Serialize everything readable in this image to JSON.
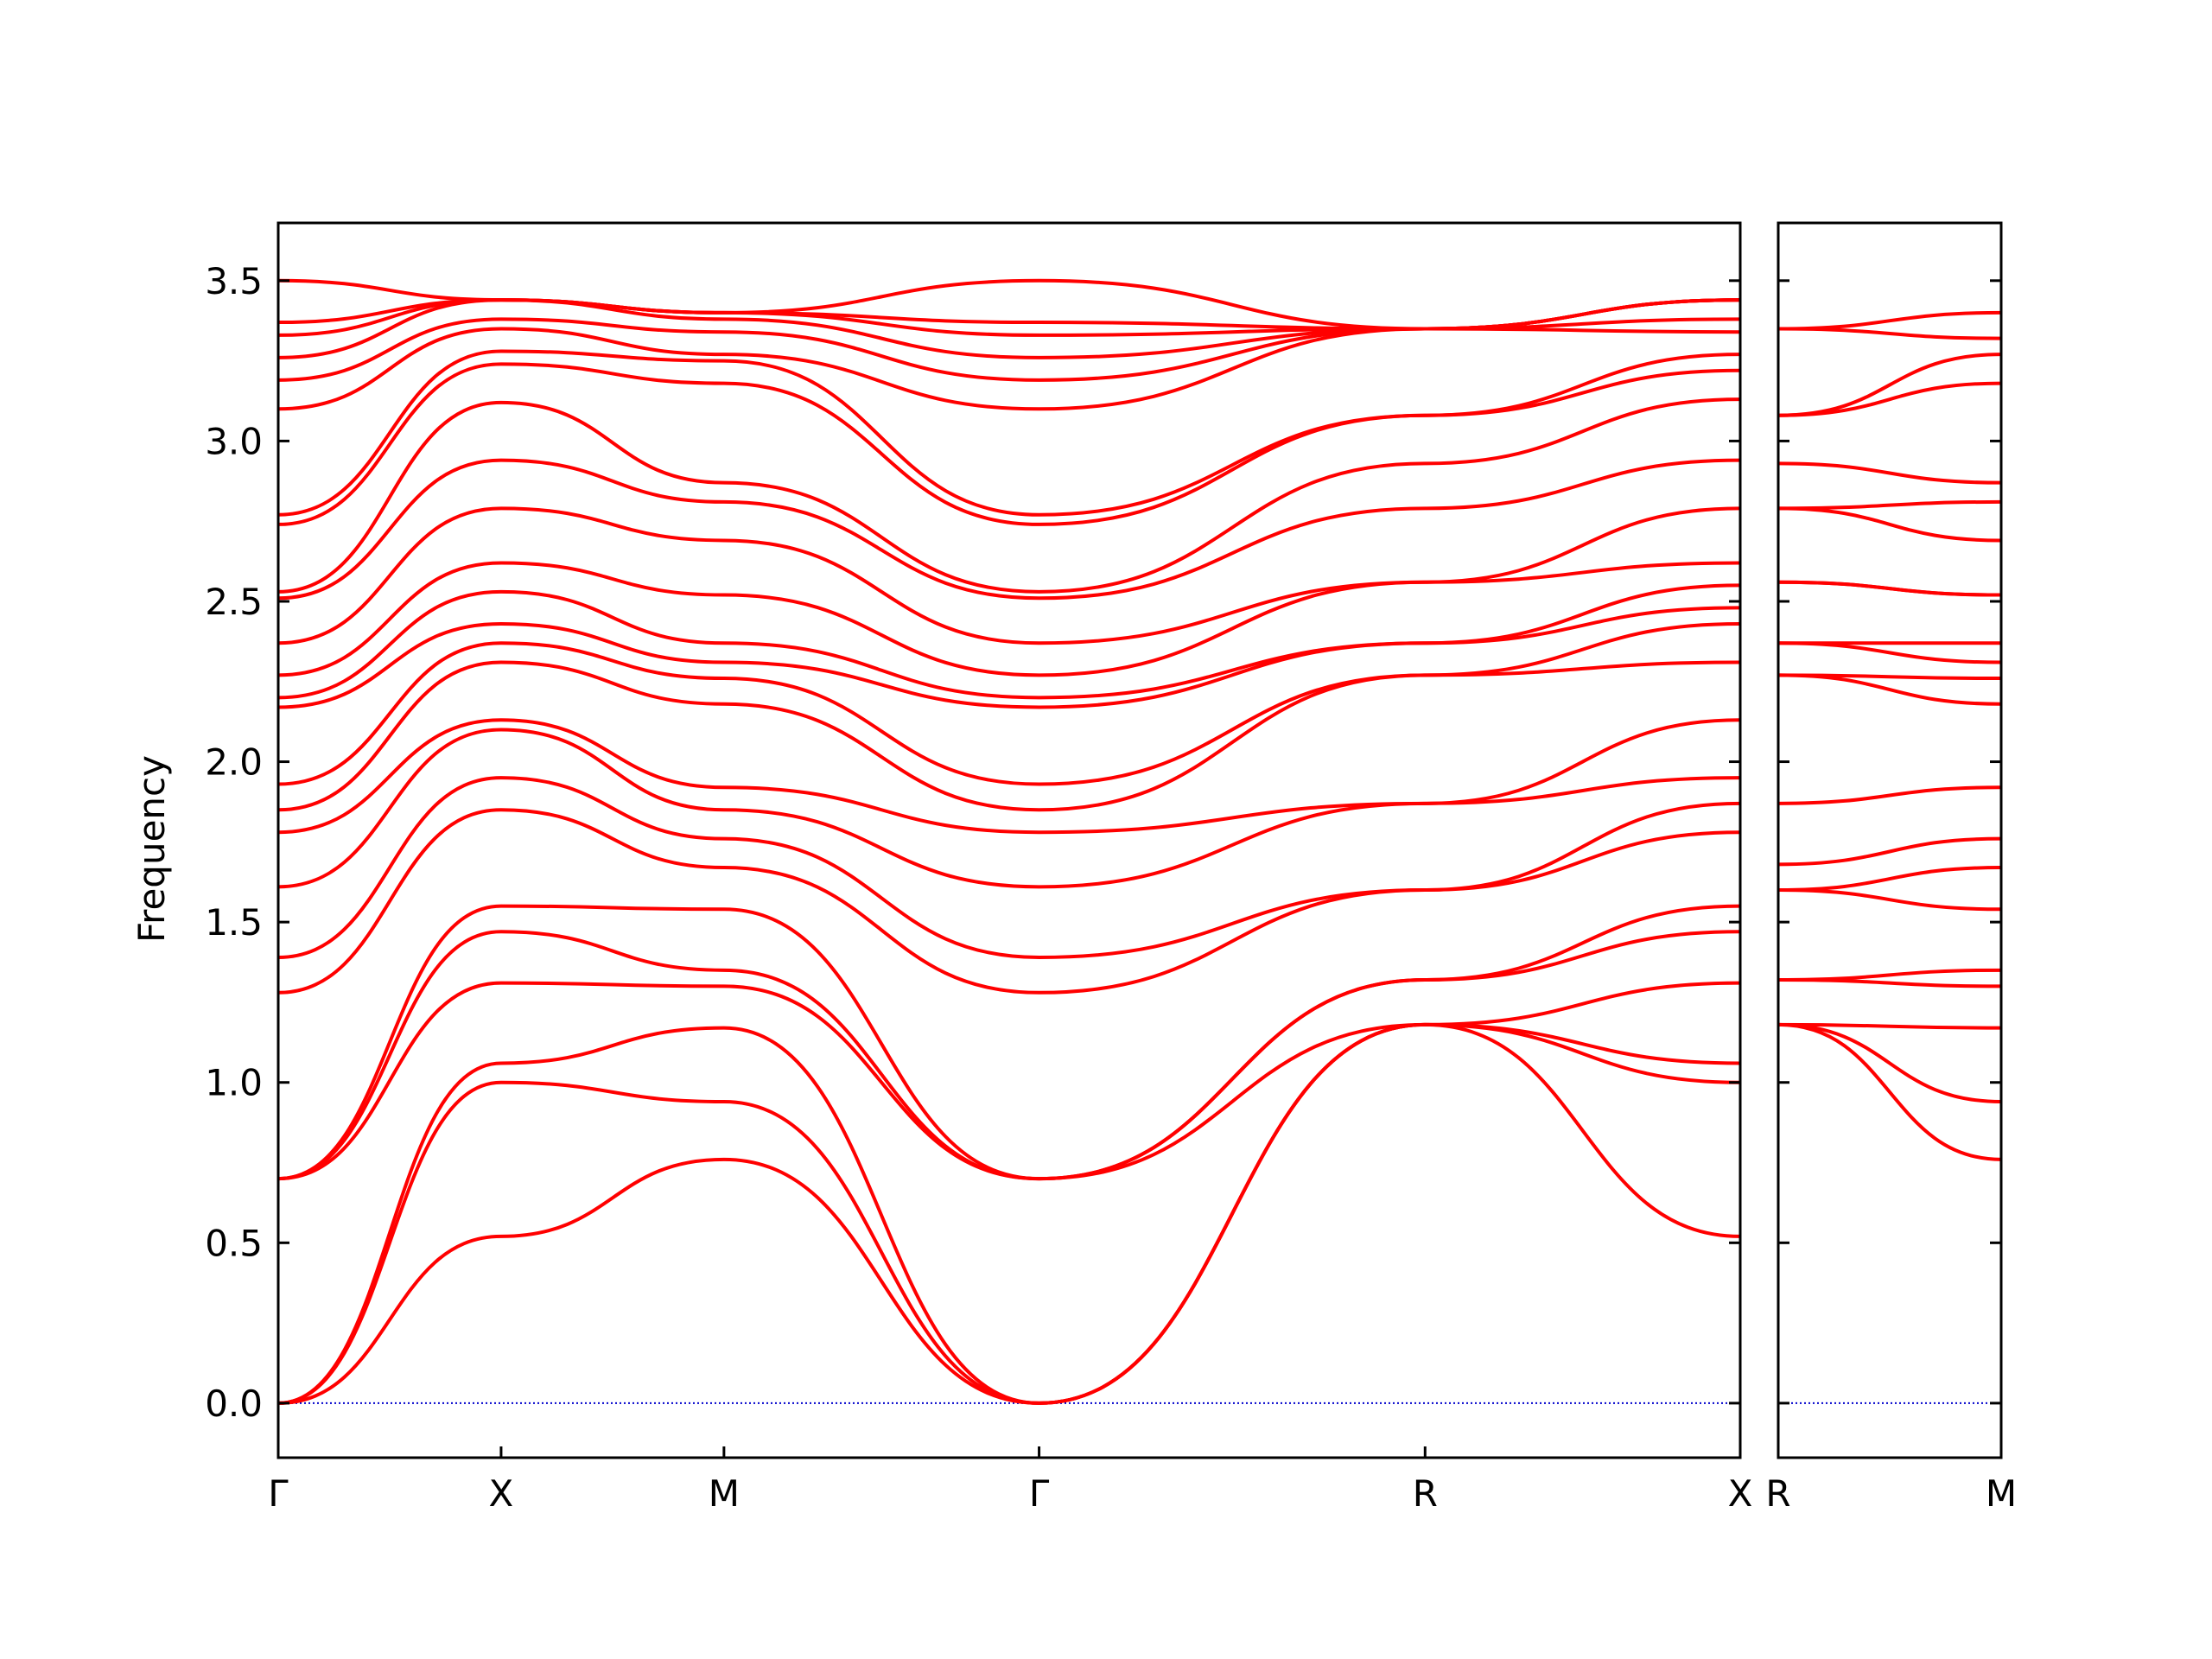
{
  "chart_data": [
    {
      "type": "line",
      "ylabel": "Frequency",
      "color": "#ff0000",
      "x": [
        0,
        1,
        2,
        3.414,
        5.146,
        6.56
      ],
      "xlim": [
        0,
        6.56
      ],
      "xticks": [
        {
          "value": 0,
          "label": "Γ"
        },
        {
          "value": 1,
          "label": "X"
        },
        {
          "value": 2,
          "label": "M"
        },
        {
          "value": 3.414,
          "label": "Γ"
        },
        {
          "value": 5.146,
          "label": "R"
        },
        {
          "value": 6.56,
          "label": "X"
        }
      ],
      "ylim": [
        -0.17,
        3.68
      ],
      "yticks": [
        {
          "value": 0,
          "label": "0.0"
        },
        0.5,
        {
          "value": 1,
          "label": "1.0"
        },
        1.5,
        {
          "value": 2,
          "label": "2.0"
        },
        2.5,
        {
          "value": 3,
          "label": "3.0"
        },
        3.5
      ],
      "show_ytick_labels": true,
      "hline": 0,
      "hline_color": "#0000cc",
      "series": [
        {
          "values": [
            0,
            0.52,
            0.76,
            0,
            1.18,
            0.52
          ]
        },
        {
          "values": [
            0,
            1.0,
            0.94,
            0,
            1.18,
            1.0
          ]
        },
        {
          "values": [
            0,
            1.06,
            1.17,
            0,
            1.18,
            1.06
          ]
        },
        {
          "values": [
            0.7,
            1.31,
            1.3,
            0.7,
            1.18,
            1.31
          ]
        },
        {
          "values": [
            0.7,
            1.47,
            1.35,
            0.7,
            1.32,
            1.47
          ]
        },
        {
          "values": [
            0.7,
            1.55,
            1.54,
            0.7,
            1.32,
            1.55
          ]
        },
        {
          "values": [
            1.28,
            1.85,
            1.67,
            1.28,
            1.6,
            1.78
          ]
        },
        {
          "values": [
            1.39,
            1.95,
            1.76,
            1.39,
            1.6,
            1.87
          ]
        },
        {
          "values": [
            1.61,
            2.1,
            1.85,
            1.61,
            1.87,
            1.95
          ]
        },
        {
          "values": [
            1.78,
            2.13,
            1.92,
            1.78,
            1.87,
            2.13
          ]
        },
        {
          "values": [
            1.85,
            2.31,
            2.18,
            1.85,
            2.27,
            2.31
          ]
        },
        {
          "values": [
            1.93,
            2.37,
            2.26,
            1.93,
            2.27,
            2.43
          ]
        },
        {
          "values": [
            2.17,
            2.43,
            2.31,
            2.17,
            2.37,
            2.48
          ]
        },
        {
          "values": [
            2.2,
            2.53,
            2.37,
            2.2,
            2.37,
            2.55
          ]
        },
        {
          "values": [
            2.27,
            2.62,
            2.52,
            2.27,
            2.56,
            2.62
          ]
        },
        {
          "values": [
            2.37,
            2.79,
            2.69,
            2.37,
            2.56,
            2.79
          ]
        },
        {
          "values": [
            2.51,
            2.94,
            2.81,
            2.51,
            2.79,
            2.94
          ]
        },
        {
          "values": [
            2.53,
            3.12,
            2.87,
            2.53,
            2.93,
            3.13
          ]
        },
        {
          "values": [
            2.74,
            3.24,
            3.18,
            2.74,
            3.08,
            3.22
          ]
        },
        {
          "values": [
            2.77,
            3.28,
            3.25,
            2.77,
            3.08,
            3.27
          ]
        },
        {
          "values": [
            3.1,
            3.35,
            3.27,
            3.1,
            3.35,
            3.34
          ]
        },
        {
          "values": [
            3.19,
            3.38,
            3.34,
            3.19,
            3.35,
            3.38
          ]
        },
        {
          "values": [
            3.26,
            3.44,
            3.38,
            3.26,
            3.35,
            3.44
          ]
        },
        {
          "values": [
            3.33,
            3.44,
            3.4,
            3.33,
            3.35,
            3.44
          ]
        },
        {
          "values": [
            3.37,
            3.44,
            3.4,
            3.37,
            3.35,
            3.44
          ]
        },
        {
          "values": [
            3.5,
            3.44,
            3.4,
            3.5,
            3.35,
            3.44
          ]
        }
      ]
    },
    {
      "type": "line",
      "color": "#ff0000",
      "x": [
        0,
        1
      ],
      "xlim": [
        0,
        1
      ],
      "xticks": [
        {
          "value": 0,
          "label": "R"
        },
        {
          "value": 1,
          "label": "M"
        }
      ],
      "ylim": [
        -0.17,
        3.68
      ],
      "yticks": [
        0,
        0.5,
        1,
        1.5,
        2,
        2.5,
        3,
        3.5
      ],
      "show_ytick_labels": false,
      "hline": 0,
      "hline_color": "#0000cc",
      "series": [
        {
          "values": [
            1.18,
            0.76
          ]
        },
        {
          "values": [
            1.18,
            0.94
          ]
        },
        {
          "values": [
            1.18,
            1.17
          ]
        },
        {
          "values": [
            1.32,
            1.3
          ]
        },
        {
          "values": [
            1.32,
            1.35
          ]
        },
        {
          "values": [
            1.6,
            1.54
          ]
        },
        {
          "values": [
            1.6,
            1.67
          ]
        },
        {
          "values": [
            1.68,
            1.76
          ]
        },
        {
          "values": [
            1.87,
            1.92
          ]
        },
        {
          "values": [
            2.27,
            2.18
          ]
        },
        {
          "values": [
            2.27,
            2.26
          ]
        },
        {
          "values": [
            2.37,
            2.31
          ]
        },
        {
          "values": [
            2.37,
            2.37
          ]
        },
        {
          "values": [
            2.56,
            2.52
          ]
        },
        {
          "values": [
            2.56,
            2.52
          ]
        },
        {
          "values": [
            2.79,
            2.69
          ]
        },
        {
          "values": [
            2.79,
            2.81
          ]
        },
        {
          "values": [
            2.93,
            2.87
          ]
        },
        {
          "values": [
            3.08,
            3.18
          ]
        },
        {
          "values": [
            3.08,
            3.27
          ]
        },
        {
          "values": [
            3.35,
            3.32
          ]
        },
        {
          "values": [
            3.35,
            3.4
          ]
        }
      ]
    }
  ]
}
